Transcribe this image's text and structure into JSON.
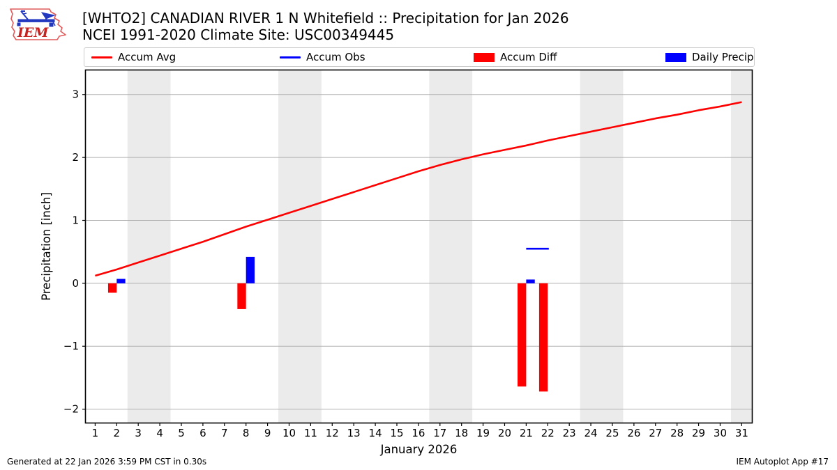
{
  "header": {
    "title_line1": "[WHTO2] CANADIAN RIVER 1 N Whitefield :: Precipitation for Jan 2026",
    "title_line2": "NCEI 1991-2020 Climate Site: USC00349445",
    "logo_text": "IEM"
  },
  "legend": {
    "items": [
      {
        "label": "Accum Avg",
        "type": "line",
        "color": "#ff0000"
      },
      {
        "label": "Accum Obs",
        "type": "line",
        "color": "#0000ff"
      },
      {
        "label": "Accum Diff",
        "type": "rect",
        "color": "#ff0000"
      },
      {
        "label": "Daily Precip",
        "type": "rect",
        "color": "#0000ff"
      }
    ]
  },
  "footer": {
    "left": "Generated at 22 Jan 2026 3:59 PM CST in 0.30s",
    "right": "IEM Autoplot App #17"
  },
  "chart_data": {
    "type": "line+bar",
    "title": "[WHTO2] CANADIAN RIVER 1 N Whitefield :: Precipitation for Jan 2026",
    "subtitle": "NCEI 1991-2020 Climate Site: USC00349445",
    "xlabel": "January 2026",
    "ylabel": "Precipitation [inch]",
    "xlim": [
      0.55,
      31.49
    ],
    "ylim": [
      -2.22,
      3.39
    ],
    "xticks": [
      1,
      2,
      3,
      4,
      5,
      6,
      7,
      8,
      9,
      10,
      11,
      12,
      13,
      14,
      15,
      16,
      17,
      18,
      19,
      20,
      21,
      22,
      23,
      24,
      25,
      26,
      27,
      28,
      29,
      30,
      31
    ],
    "yticks": [
      -2,
      -1,
      0,
      1,
      2,
      3
    ],
    "grid": "horizontal",
    "weekend_bands": [
      [
        2.5,
        4.5
      ],
      [
        9.5,
        11.5
      ],
      [
        16.5,
        18.5
      ],
      [
        23.5,
        25.5
      ],
      [
        30.5,
        31.5
      ]
    ],
    "colors": {
      "band": "#ebebeb",
      "grid": "#b0b0b0",
      "border": "#000000"
    },
    "series": [
      {
        "name": "Accum Avg",
        "type": "line",
        "color": "#ff0000",
        "x": [
          1,
          2,
          3,
          4,
          5,
          6,
          7,
          8,
          9,
          10,
          11,
          12,
          13,
          14,
          15,
          16,
          17,
          18,
          19,
          20,
          21,
          22,
          23,
          24,
          25,
          26,
          27,
          28,
          29,
          30,
          31
        ],
        "y": [
          0.12,
          0.22,
          0.33,
          0.44,
          0.55,
          0.66,
          0.78,
          0.9,
          1.01,
          1.12,
          1.23,
          1.34,
          1.45,
          1.56,
          1.67,
          1.78,
          1.88,
          1.97,
          2.05,
          2.12,
          2.19,
          2.27,
          2.34,
          2.41,
          2.48,
          2.55,
          2.62,
          2.68,
          2.75,
          2.81,
          2.88
        ]
      },
      {
        "name": "Accum Obs",
        "type": "line",
        "color": "#0000ff",
        "x": [
          21,
          22.05
        ],
        "y": [
          0.55,
          0.55
        ]
      },
      {
        "name": "Accum Diff",
        "type": "bar",
        "color": "#ff0000",
        "bar_offset": -0.4,
        "bar_width": 0.4,
        "points": [
          {
            "day": 2,
            "value": -0.15
          },
          {
            "day": 8,
            "value": -0.41
          },
          {
            "day": 21,
            "value": -1.64
          },
          {
            "day": 22,
            "value": -1.72
          }
        ]
      },
      {
        "name": "Daily Precip",
        "type": "bar",
        "color": "#0000ff",
        "bar_offset": 0,
        "bar_width": 0.4,
        "points": [
          {
            "day": 2,
            "value": 0.07
          },
          {
            "day": 8,
            "value": 0.42
          },
          {
            "day": 21,
            "value": 0.06
          }
        ]
      }
    ]
  }
}
